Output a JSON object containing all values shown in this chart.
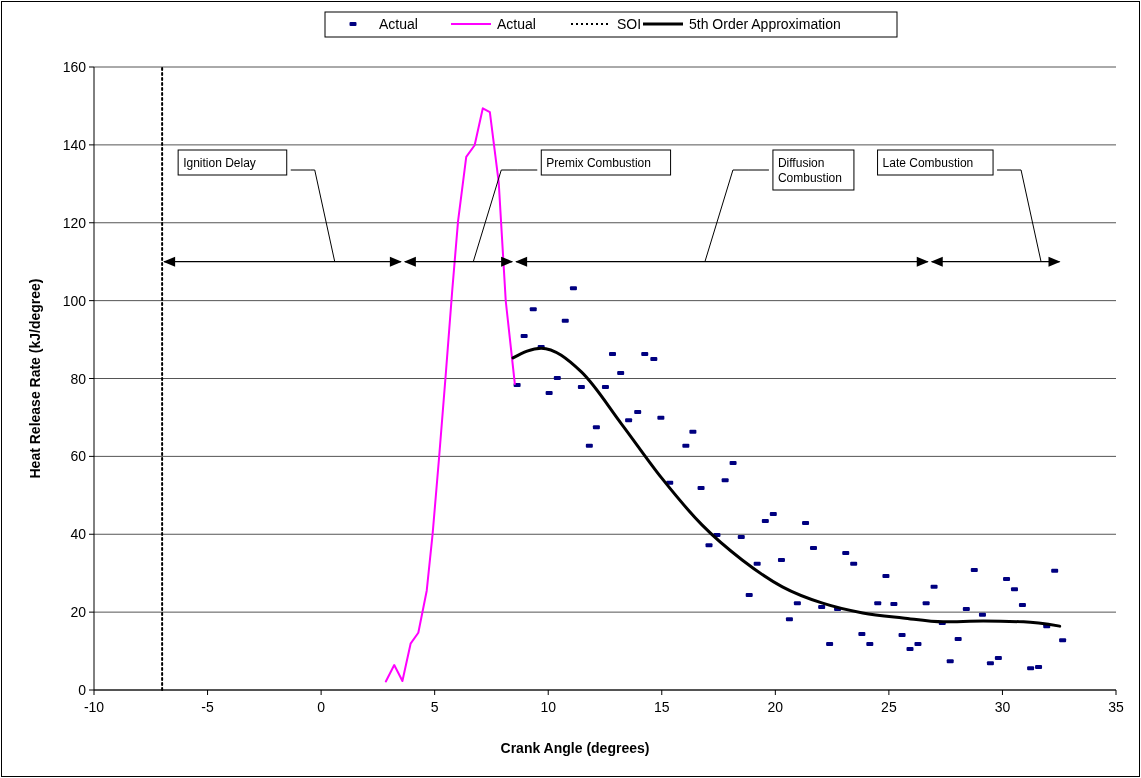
{
  "chart_data": {
    "type": "scatter",
    "xlabel": "Crank Angle (degrees)",
    "ylabel": "Heat Release Rate (kJ/degree)",
    "xlim": [
      -10,
      35
    ],
    "xticks": [
      -10,
      -5,
      0,
      5,
      10,
      15,
      20,
      25,
      30,
      35
    ],
    "ylim": [
      0,
      160
    ],
    "yticks": [
      0,
      20,
      40,
      60,
      80,
      100,
      120,
      140,
      160
    ],
    "grid": "y",
    "legend": "top",
    "series": [
      {
        "name": "Actual",
        "marker": "square",
        "color": "#000080",
        "x": [
          8.63,
          8.94,
          9.34,
          9.69,
          10.04,
          10.4,
          10.75,
          11.11,
          11.46,
          11.81,
          12.12,
          12.52,
          12.83,
          13.19,
          13.54,
          13.94,
          14.25,
          14.65,
          14.96,
          15.35,
          16.06,
          16.37,
          16.73,
          17.08,
          17.43,
          17.79,
          18.14,
          18.5,
          18.85,
          19.2,
          19.56,
          19.91,
          20.27,
          20.62,
          20.97,
          21.33,
          21.68,
          22.04,
          22.39,
          22.74,
          23.1,
          23.45,
          23.81,
          24.16,
          24.51,
          24.87,
          25.22,
          25.58,
          25.93,
          26.28,
          26.64,
          26.99,
          27.35,
          27.7,
          28.05,
          28.41,
          28.76,
          29.12,
          29.47,
          29.82,
          30.18,
          30.53,
          30.88,
          31.24,
          31.59,
          31.95,
          32.3,
          32.65
        ],
        "values": [
          78.3,
          90.9,
          97.8,
          88.1,
          76.3,
          80.1,
          94.8,
          103.2,
          77.8,
          62.7,
          67.5,
          77.8,
          86.3,
          81.4,
          69.3,
          71.4,
          86.3,
          85,
          69.9,
          53.2,
          62.7,
          66.3,
          51.9,
          37.2,
          39.8,
          53.9,
          58.3,
          39.3,
          24.4,
          32.4,
          43.4,
          45.2,
          33.4,
          18.2,
          22.3,
          42.9,
          36.5,
          21.3,
          11.8,
          20.8,
          35.2,
          32.4,
          14.4,
          11.8,
          22.3,
          29.3,
          22.1,
          14.1,
          10.5,
          11.8,
          22.3,
          26.5,
          17.2,
          7.4,
          13.1,
          20.8,
          30.8,
          19.3,
          6.9,
          8.2,
          28.5,
          25.9,
          21.8,
          5.6,
          5.9,
          16.4,
          30.6,
          12.8
        ]
      },
      {
        "name": "Actual",
        "type": "line",
        "marker": "none",
        "color": "#ff00ff",
        "x": [
          2.85,
          3.22,
          3.58,
          3.94,
          4.28,
          4.65,
          4.91,
          5.2,
          5.49,
          5.78,
          6.03,
          6.39,
          6.76,
          7.12,
          7.43,
          7.82,
          8.13,
          8.53
        ],
        "values": [
          2.2,
          6.4,
          2.3,
          11.9,
          14.7,
          25.5,
          40.1,
          60.1,
          81.2,
          103.1,
          120.4,
          136.9,
          139.9,
          149.4,
          148.4,
          130.4,
          99.9,
          78.6
        ]
      },
      {
        "name": "SOI",
        "type": "line",
        "marker": "none",
        "line_style": "dotted",
        "color": "#000000",
        "x": [
          -7,
          -7
        ],
        "values": [
          0,
          160
        ]
      },
      {
        "name": "5th Order Approximation",
        "type": "line",
        "marker": "none",
        "color": "#000000",
        "x": [
          8.45,
          9.69,
          11.46,
          13.23,
          15.0,
          16.77,
          18.54,
          20.31,
          22.08,
          23.85,
          25.62,
          27.39,
          29.16,
          30.93,
          32.52
        ],
        "values": [
          85.3,
          87.8,
          81.7,
          68.3,
          54.4,
          42.4,
          33.4,
          26.5,
          22.3,
          19.8,
          18.5,
          17.5,
          17.7,
          17.5,
          16.4
        ]
      }
    ],
    "annotations": [
      "Ignition Delay",
      "Premix Combustion",
      "Diffusion Combustion",
      "Late Combustion"
    ]
  }
}
